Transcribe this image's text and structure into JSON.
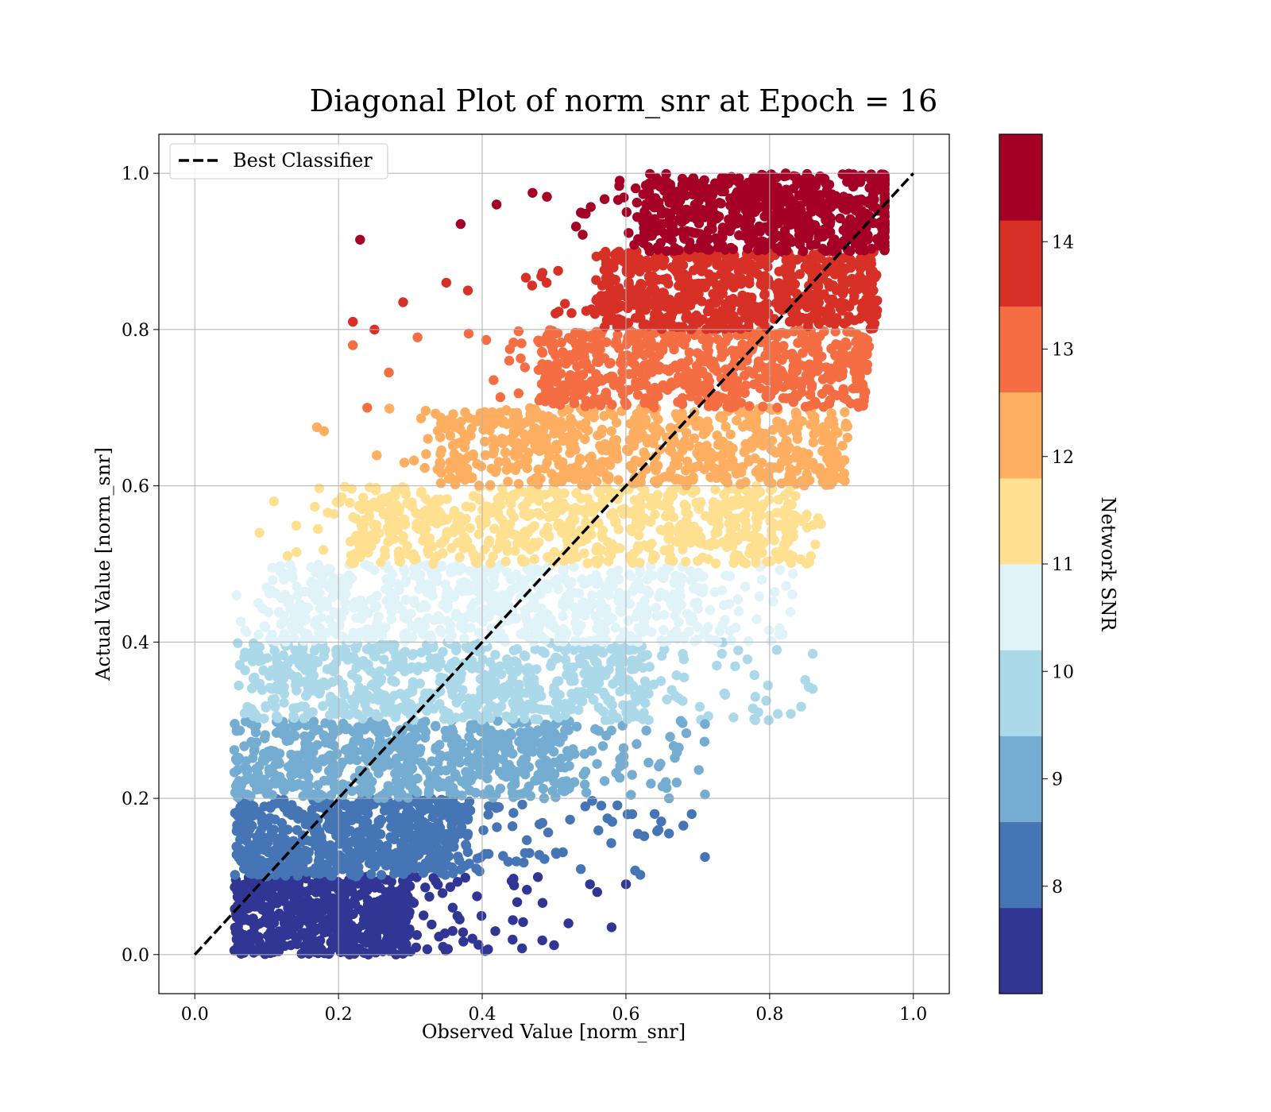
{
  "chart_data": {
    "type": "scatter",
    "title": "Diagonal Plot of norm_snr at Epoch = 16",
    "xlabel": "Observed Value [norm_snr]",
    "ylabel": "Actual Value [norm_snr]",
    "xlim": [
      -0.05,
      1.05
    ],
    "ylim": [
      -0.05,
      1.05
    ],
    "x_ticks": [
      "0.0",
      "0.2",
      "0.4",
      "0.6",
      "0.8",
      "1.0"
    ],
    "y_ticks": [
      "0.0",
      "0.2",
      "0.4",
      "0.6",
      "0.8",
      "1.0"
    ],
    "grid": true,
    "legend": {
      "placement": "upper-left",
      "entries": [
        "Best Classifier"
      ]
    },
    "reference_line": {
      "label": "Best Classifier",
      "x": [
        0,
        1
      ],
      "y": [
        0,
        1
      ],
      "style": "dashed",
      "color": "#000000"
    },
    "colorbar": {
      "label": "Network SNR",
      "range": [
        7.0,
        15.0
      ],
      "tick_values": [
        8,
        9,
        10,
        11,
        12,
        13,
        14
      ],
      "tick_labels": [
        "8",
        "9",
        "10",
        "11",
        "12",
        "13",
        "14"
      ],
      "colors": [
        "#313695",
        "#4575b4",
        "#74add1",
        "#abd9e9",
        "#e0f3f8",
        "#fee090",
        "#fdae61",
        "#f46d43",
        "#d73027",
        "#a50026"
      ]
    },
    "bands": [
      {
        "y": [
          0.0,
          0.1
        ],
        "x_core": [
          0.06,
          0.3
        ],
        "x_tail": 0.5
      },
      {
        "y": [
          0.1,
          0.2
        ],
        "x_core": [
          0.06,
          0.38
        ],
        "x_tail": 0.71
      },
      {
        "y": [
          0.2,
          0.3
        ],
        "x_core": [
          0.06,
          0.52
        ],
        "x_tail": 0.71
      },
      {
        "y": [
          0.3,
          0.4
        ],
        "x_core": [
          0.08,
          0.62
        ],
        "x_tail": 0.86
      },
      {
        "y": [
          0.4,
          0.5
        ],
        "x_core": [
          0.12,
          0.7
        ],
        "x_tail": 0.84
      },
      {
        "y": [
          0.5,
          0.6
        ],
        "x_core": [
          0.22,
          0.82
        ],
        "x_tail": 0.88
      },
      {
        "y": [
          0.6,
          0.7
        ],
        "x_core": [
          0.34,
          0.88
        ],
        "x_tail": 0.91
      },
      {
        "y": [
          0.7,
          0.8
        ],
        "x_core": [
          0.48,
          0.92
        ],
        "x_tail": 0.94
      },
      {
        "y": [
          0.8,
          0.9
        ],
        "x_core": [
          0.56,
          0.94
        ],
        "x_tail": 0.95
      },
      {
        "y": [
          0.9,
          1.0
        ],
        "x_core": [
          0.62,
          0.96
        ],
        "x_tail": 0.96
      }
    ],
    "outliers": [
      {
        "x": 0.23,
        "y": 0.915
      },
      {
        "x": 0.37,
        "y": 0.935
      },
      {
        "x": 0.42,
        "y": 0.96
      },
      {
        "x": 0.47,
        "y": 0.975
      },
      {
        "x": 0.49,
        "y": 0.97
      },
      {
        "x": 0.29,
        "y": 0.835
      },
      {
        "x": 0.35,
        "y": 0.86
      },
      {
        "x": 0.38,
        "y": 0.85
      },
      {
        "x": 0.22,
        "y": 0.81
      },
      {
        "x": 0.25,
        "y": 0.8
      },
      {
        "x": 0.31,
        "y": 0.79
      },
      {
        "x": 0.22,
        "y": 0.78
      },
      {
        "x": 0.24,
        "y": 0.7
      },
      {
        "x": 0.27,
        "y": 0.745
      },
      {
        "x": 0.17,
        "y": 0.675
      },
      {
        "x": 0.18,
        "y": 0.67
      },
      {
        "x": 0.09,
        "y": 0.54
      },
      {
        "x": 0.11,
        "y": 0.58
      },
      {
        "x": 0.1,
        "y": 0.47
      },
      {
        "x": 0.07,
        "y": 0.415
      },
      {
        "x": 0.81,
        "y": 0.39
      },
      {
        "x": 0.86,
        "y": 0.385
      },
      {
        "x": 0.86,
        "y": 0.34
      },
      {
        "x": 0.78,
        "y": 0.33
      },
      {
        "x": 0.78,
        "y": 0.3
      },
      {
        "x": 0.71,
        "y": 0.295
      },
      {
        "x": 0.71,
        "y": 0.205
      },
      {
        "x": 0.71,
        "y": 0.125
      },
      {
        "x": 0.68,
        "y": 0.165
      },
      {
        "x": 0.66,
        "y": 0.155
      },
      {
        "x": 0.58,
        "y": 0.035
      },
      {
        "x": 0.5,
        "y": 0.012
      },
      {
        "x": 0.52,
        "y": 0.04
      },
      {
        "x": 0.6,
        "y": 0.09
      },
      {
        "x": 0.55,
        "y": 0.09
      },
      {
        "x": 0.56,
        "y": 0.08
      },
      {
        "x": 0.66,
        "y": 0.2
      },
      {
        "x": 0.64,
        "y": 0.18
      }
    ]
  }
}
